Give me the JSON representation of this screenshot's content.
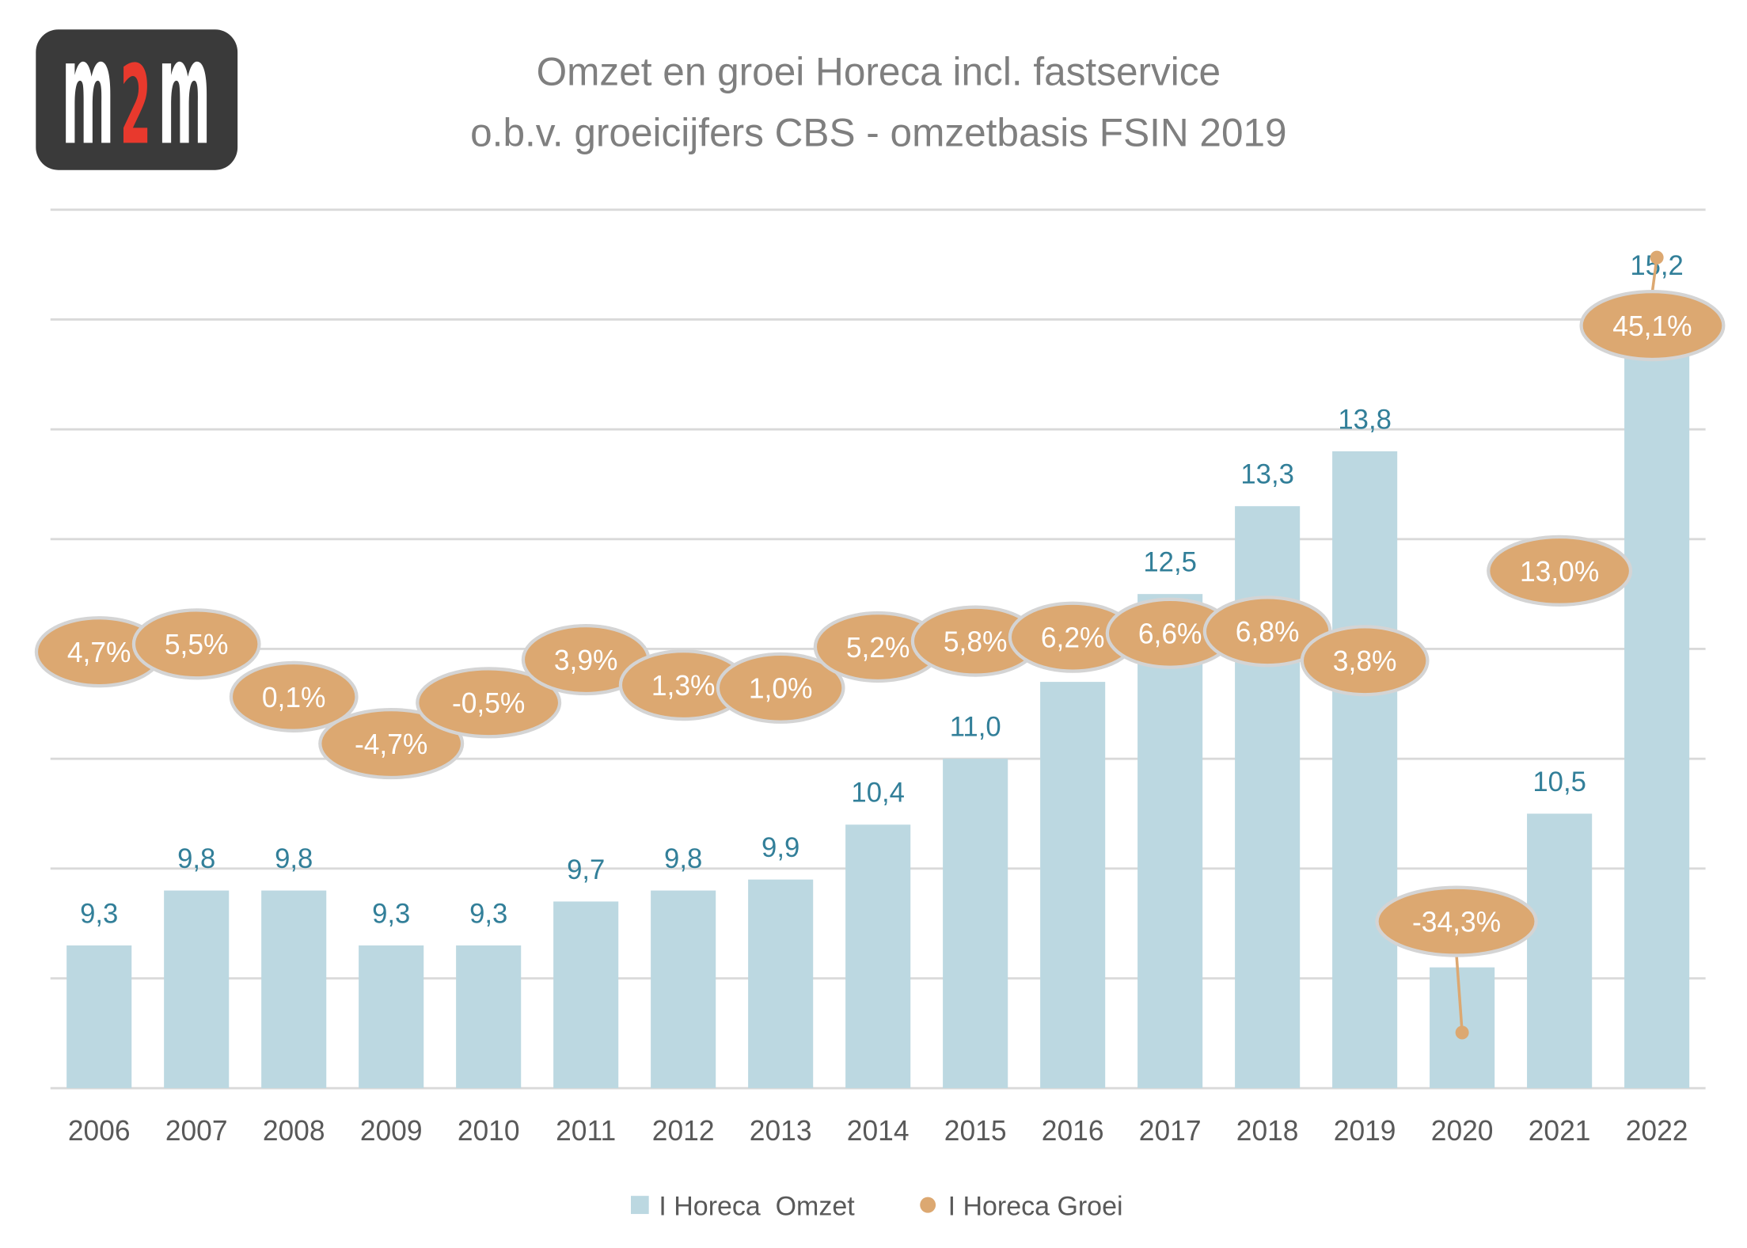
{
  "logo": {
    "letters": [
      "m",
      "2",
      "m"
    ],
    "colors": {
      "background": "#3a3a3a",
      "letters": "#ffffff",
      "accent": "#e8392d"
    }
  },
  "colors": {
    "title": "#7f7f7f",
    "tick_label": "#595959",
    "legend_text": "#595959",
    "grid": "#d9d9d9",
    "bubble_stroke": "#d4d4d4",
    "bubble_text": "#ffffff"
  },
  "chart_data": {
    "type": "bar",
    "title": "Omzet en groei Horeca incl. fastservice",
    "subtitle": "o.b.v. groeicijfers CBS - omzetbasis FSIN 2019",
    "categories": [
      "2006",
      "2007",
      "2008",
      "2009",
      "2010",
      "2011",
      "2012",
      "2013",
      "2014",
      "2015",
      "2016",
      "2017",
      "2018",
      "2019",
      "2020",
      "2021",
      "2022"
    ],
    "ylim": [
      8,
      16
    ],
    "y2lim": [
      -40,
      50
    ],
    "grid": true,
    "legend_position": "bottom",
    "series": [
      {
        "name": "I Horeca  Omzet",
        "type": "bar",
        "axis": "primary",
        "values": [
          9.3,
          9.8,
          9.8,
          9.3,
          9.3,
          9.7,
          9.8,
          9.9,
          10.4,
          11.0,
          11.7,
          12.5,
          13.3,
          13.8,
          9.1,
          10.5,
          15.2
        ],
        "labels": [
          "9,3",
          "9,8",
          "9,8",
          "9,3",
          "9,3",
          "9,7",
          "9,8",
          "9,9",
          "10,4",
          "11,0",
          null,
          "12,5",
          "13,3",
          "13,8",
          null,
          "10,5",
          "15,2"
        ],
        "color": "#bcd8e1",
        "label_color": "#327f99"
      },
      {
        "name": "I Horeca Groei",
        "type": "line",
        "axis": "secondary",
        "line_visible": false,
        "values": [
          4.7,
          5.5,
          0.1,
          -4.7,
          -0.5,
          3.9,
          1.3,
          1.0,
          5.2,
          5.8,
          6.2,
          6.6,
          6.8,
          3.8,
          -34.3,
          13.0,
          45.1
        ],
        "labels": [
          "4,7%",
          "5,5%",
          "0,1%",
          "-4,7%",
          "-0,5%",
          "3,9%",
          "1,3%",
          "1,0%",
          "5,2%",
          "5,8%",
          "6,2%",
          "6,6%",
          "6,8%",
          "3,8%",
          "-34,3%",
          "13,0%",
          "45,1%"
        ],
        "color": "#dca871"
      }
    ]
  }
}
